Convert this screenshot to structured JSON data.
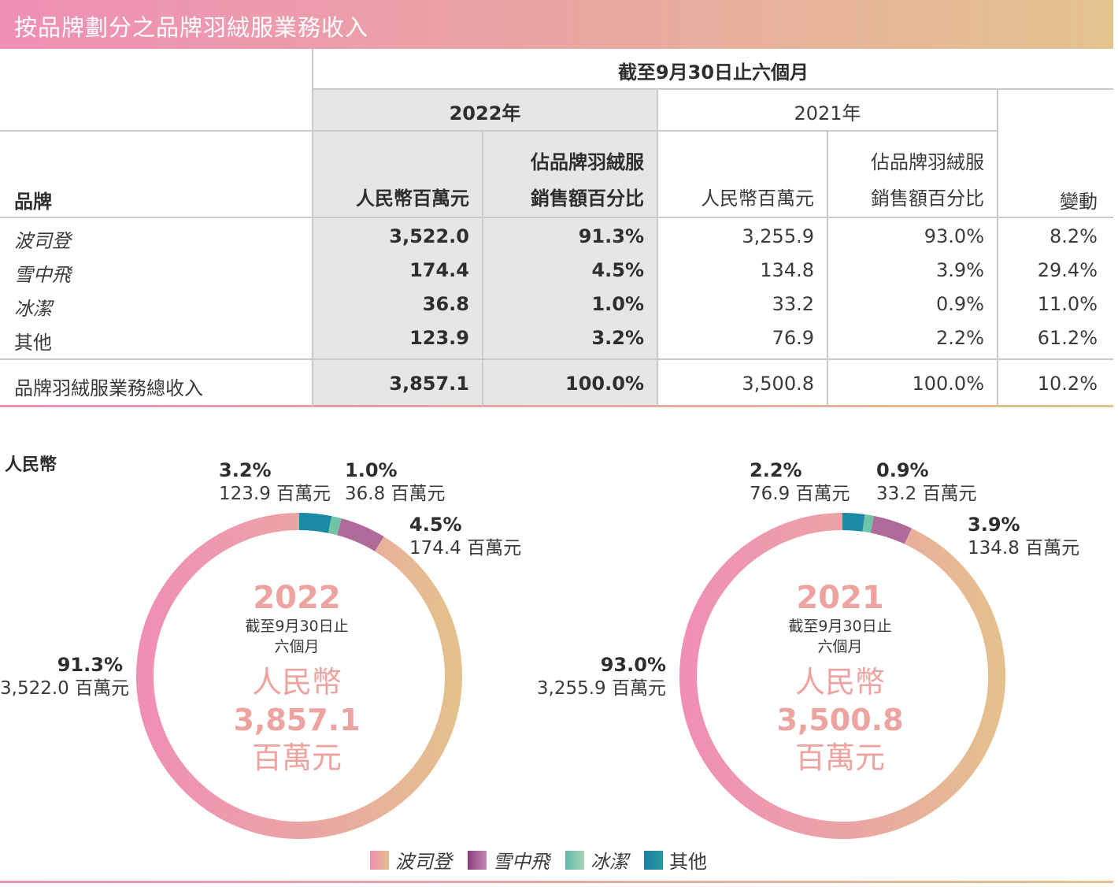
{
  "title": "按品牌劃分之品牌羽絨服業務收入",
  "table": {
    "period_header": "截至9月30日止六個月",
    "years": [
      "2022年",
      "2021年"
    ],
    "brand_header": "品牌",
    "rmb_header": "人民幣百萬元",
    "pct_header_line1": "佔品牌羽絨服",
    "pct_header_line2": "銷售額百分比",
    "change_header": "變動",
    "rows": [
      {
        "brand": "波司登",
        "rmb_2022": "3,522.0",
        "pct_2022": "91.3%",
        "rmb_2021": "3,255.9",
        "pct_2021": "93.0%",
        "change": "8.2%"
      },
      {
        "brand": "雪中飛",
        "rmb_2022": "174.4",
        "pct_2022": "4.5%",
        "rmb_2021": "134.8",
        "pct_2021": "3.9%",
        "change": "29.4%"
      },
      {
        "brand": "冰潔",
        "rmb_2022": "36.8",
        "pct_2022": "1.0%",
        "rmb_2021": "33.2",
        "pct_2021": "0.9%",
        "change": "11.0%"
      },
      {
        "brand": "其他",
        "rmb_2022": "123.9",
        "pct_2022": "3.2%",
        "rmb_2021": "76.9",
        "pct_2021": "2.2%",
        "change": "61.2%"
      }
    ],
    "total": {
      "brand": "品牌羽絨服業務總收入",
      "rmb_2022": "3,857.1",
      "pct_2022": "100.0%",
      "rmb_2021": "3,500.8",
      "pct_2021": "100.0%",
      "change": "10.2%"
    }
  },
  "section_label": "人民幣",
  "chart_data": [
    {
      "type": "pie",
      "year": "2022",
      "center_sub_line1": "截至9月30日止",
      "center_sub_line2": "六個月",
      "center_currency": "人民幣",
      "center_total": "3,857.1",
      "center_unit": "百萬元",
      "slices": [
        {
          "name": "波司登",
          "pct": 91.3,
          "pct_label": "91.3%",
          "amount_label": "3,522.0 百萬元",
          "color": "#ef8fb5"
        },
        {
          "name": "雪中飛",
          "pct": 4.5,
          "pct_label": "4.5%",
          "amount_label": "174.4 百萬元",
          "color": "#b06a9a"
        },
        {
          "name": "冰潔",
          "pct": 1.0,
          "pct_label": "1.0%",
          "amount_label": "36.8 百萬元",
          "color": "#6fc3a6"
        },
        {
          "name": "其他",
          "pct": 3.2,
          "pct_label": "3.2%",
          "amount_label": "123.9 百萬元",
          "color": "#1a8aa6"
        }
      ]
    },
    {
      "type": "pie",
      "year": "2021",
      "center_sub_line1": "截至9月30日止",
      "center_sub_line2": "六個月",
      "center_currency": "人民幣",
      "center_total": "3,500.8",
      "center_unit": "百萬元",
      "slices": [
        {
          "name": "波司登",
          "pct": 93.0,
          "pct_label": "93.0%",
          "amount_label": "3,255.9 百萬元",
          "color": "#ef8fb5"
        },
        {
          "name": "雪中飛",
          "pct": 3.9,
          "pct_label": "3.9%",
          "amount_label": "134.8 百萬元",
          "color": "#b06a9a"
        },
        {
          "name": "冰潔",
          "pct": 0.9,
          "pct_label": "0.9%",
          "amount_label": "33.2 百萬元",
          "color": "#6fc3a6"
        },
        {
          "name": "其他",
          "pct": 2.2,
          "pct_label": "2.2%",
          "amount_label": "76.9 百萬元",
          "color": "#1a8aa6"
        }
      ]
    }
  ],
  "legend": [
    {
      "name": "波司登"
    },
    {
      "name": "雪中飛"
    },
    {
      "name": "冰潔"
    },
    {
      "name": "其他"
    }
  ]
}
